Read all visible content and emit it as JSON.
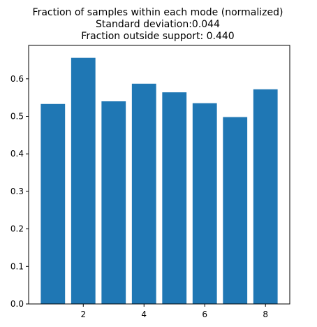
{
  "chart_data": {
    "type": "bar",
    "title": [
      "Fraction of samples within each mode (normalized)",
      "Standard deviation:0.044",
      "Fraction outside support: 0.440"
    ],
    "xlabel": "",
    "ylabel": "",
    "categories": [
      1,
      2,
      3,
      4,
      5,
      6,
      7,
      8
    ],
    "values": [
      0.533,
      0.656,
      0.54,
      0.587,
      0.564,
      0.535,
      0.498,
      0.572
    ],
    "xlim": [
      0.2,
      8.8
    ],
    "ylim": [
      0,
      0.689
    ],
    "x_ticks": [
      2,
      4,
      6,
      8
    ],
    "y_ticks": [
      0.0,
      0.1,
      0.2,
      0.3,
      0.4,
      0.5,
      0.6
    ],
    "bar_color": "#1f77b4",
    "grid": false,
    "legend": "none"
  }
}
